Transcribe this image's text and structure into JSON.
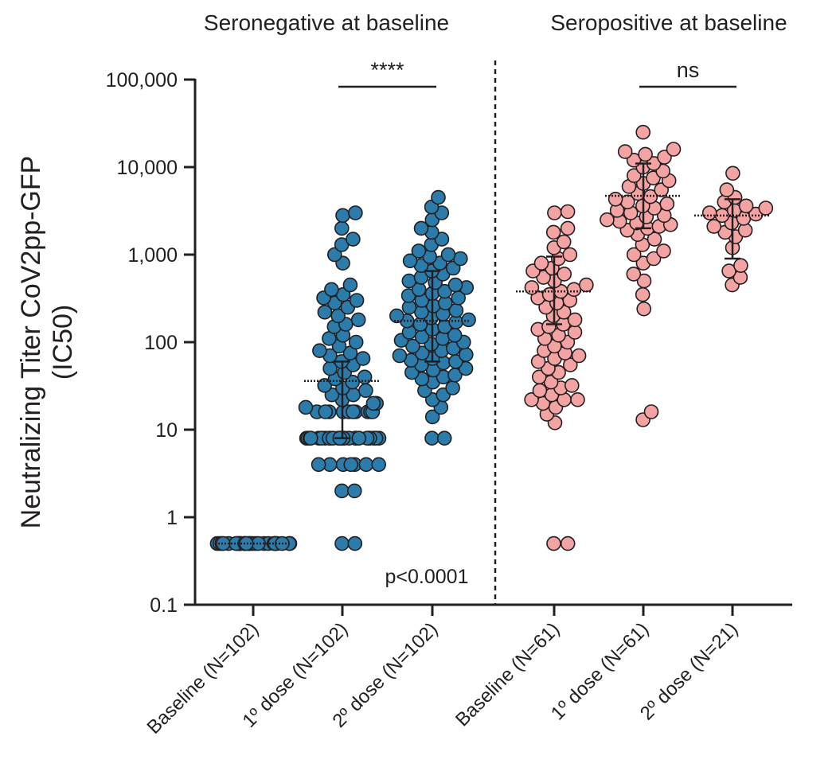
{
  "chart_data": {
    "type": "scatter",
    "y_scale": "log",
    "ylim": [
      0.1,
      100000
    ],
    "ylabel_lines": [
      "Neutralizing Titer CoV2pp-GFP",
      "(IC50)"
    ],
    "y_ticks": [
      {
        "value": 0.1,
        "label": "0.1"
      },
      {
        "value": 1,
        "label": "1"
      },
      {
        "value": 10,
        "label": "10"
      },
      {
        "value": 100,
        "label": "100"
      },
      {
        "value": 1000,
        "label": "1,000"
      },
      {
        "value": 10000,
        "label": "10,000"
      },
      {
        "value": 100000,
        "label": "100,000"
      }
    ],
    "panel_titles": [
      "Seronegative at baseline",
      "Seropositive at baseline"
    ],
    "colors": {
      "seronegative": "#2b7bab",
      "seropositive": "#f4a3a3",
      "outline": "#231f20"
    },
    "groups": [
      {
        "label": "Baseline (N=102)",
        "panel": "seronegative",
        "median": 0.5,
        "values": [
          0.5,
          0.5,
          0.5,
          0.5,
          0.5,
          0.5,
          0.5,
          0.5,
          0.5,
          0.5,
          0.5,
          0.5,
          0.5,
          0.5,
          0.5,
          0.5,
          0.5,
          0.5,
          0.5,
          0.5,
          0.5,
          0.5,
          0.5,
          0.5,
          0.5,
          0.5,
          0.5,
          0.5,
          0.5,
          0.5
        ]
      },
      {
        "label": "1º dose (N=102)",
        "panel": "seronegative",
        "median": 36,
        "iqr": [
          8,
          60
        ],
        "values": [
          0.5,
          0.5,
          2,
          2,
          4,
          4,
          4,
          4,
          4,
          4,
          4,
          8,
          8,
          8,
          8,
          8,
          8,
          8,
          8,
          8,
          8,
          8,
          8,
          8,
          8,
          8,
          8,
          8,
          8,
          8,
          8,
          8,
          8,
          8,
          8,
          8,
          8,
          8,
          8,
          8,
          16,
          16,
          16,
          16,
          16,
          16,
          16,
          16,
          16,
          16,
          18,
          20,
          20,
          22,
          25,
          25,
          28,
          30,
          32,
          35,
          38,
          40,
          45,
          50,
          55,
          60,
          65,
          70,
          75,
          80,
          90,
          100,
          110,
          120,
          150,
          160,
          180,
          200,
          220,
          250,
          280,
          300,
          320,
          350,
          400,
          450,
          800,
          1000,
          1300,
          1500,
          2000,
          2800,
          3000
        ]
      },
      {
        "label": "2º dose (N=102)",
        "panel": "seronegative",
        "median": 175,
        "iqr": [
          60,
          650
        ],
        "values": [
          8,
          8,
          14,
          18,
          22,
          25,
          28,
          30,
          35,
          38,
          40,
          42,
          45,
          48,
          50,
          55,
          58,
          60,
          62,
          65,
          70,
          72,
          75,
          80,
          85,
          90,
          95,
          100,
          105,
          110,
          115,
          120,
          130,
          140,
          150,
          160,
          170,
          175,
          180,
          190,
          200,
          210,
          220,
          230,
          250,
          260,
          280,
          300,
          320,
          340,
          360,
          380,
          400,
          420,
          450,
          480,
          500,
          550,
          600,
          650,
          700,
          750,
          800,
          850,
          900,
          950,
          1000,
          1100,
          1300,
          1500,
          1800,
          2000,
          2500,
          3000,
          3500,
          4500
        ]
      },
      {
        "label": "Baseline (N=61)",
        "panel": "seropositive",
        "median": 380,
        "iqr": [
          160,
          950
        ],
        "values": [
          0.5,
          0.5,
          12,
          15,
          18,
          20,
          22,
          22,
          22,
          25,
          28,
          30,
          32,
          35,
          40,
          45,
          50,
          55,
          60,
          65,
          70,
          75,
          80,
          90,
          100,
          110,
          120,
          130,
          140,
          150,
          160,
          180,
          200,
          220,
          250,
          280,
          300,
          320,
          350,
          380,
          400,
          420,
          450,
          500,
          550,
          600,
          650,
          700,
          800,
          900,
          1000,
          1200,
          1400,
          1800,
          2000,
          3000,
          3100
        ]
      },
      {
        "label": "1º dose (N=61)",
        "panel": "seropositive",
        "median": 4700,
        "iqr": [
          2000,
          11000
        ],
        "values": [
          13,
          16,
          240,
          350,
          500,
          600,
          800,
          900,
          1000,
          1100,
          1300,
          1500,
          1700,
          1900,
          2000,
          2100,
          2200,
          2300,
          2400,
          2500,
          2700,
          2800,
          3000,
          3200,
          3400,
          3600,
          3800,
          4000,
          4300,
          4600,
          5000,
          5500,
          6000,
          6500,
          7000,
          7500,
          8000,
          9000,
          10000,
          11000,
          12000,
          13000,
          14000,
          15000,
          16000,
          25000
        ]
      },
      {
        "label": "2º dose (N=21)",
        "panel": "seropositive",
        "median": 2800,
        "iqr": [
          900,
          4300
        ],
        "values": [
          450,
          550,
          650,
          750,
          1200,
          1600,
          1900,
          2100,
          2300,
          2600,
          2800,
          3000,
          3200,
          3400,
          3600,
          4000,
          4500,
          5500,
          8500,
          1800,
          2900
        ]
      }
    ],
    "comparisons": [
      {
        "groups": [
          1,
          2
        ],
        "label": "****"
      },
      {
        "groups": [
          4,
          5
        ],
        "label": "ns"
      }
    ],
    "annotation": "p<0.0001"
  }
}
